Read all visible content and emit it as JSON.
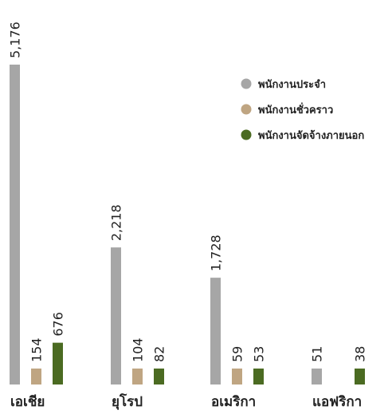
{
  "chart_data": {
    "type": "bar",
    "categories": [
      "เอเชีย",
      "ยุโรป",
      "อเมริกา",
      "แอฟริกา"
    ],
    "series": [
      {
        "name": "พนักงานประจำ",
        "color": "#a6a6a6",
        "values": [
          5176,
          2218,
          1728,
          51
        ],
        "labels": [
          "5,176",
          "2,218",
          "1,728",
          "51"
        ]
      },
      {
        "name": "พนักงานชั่วคราว",
        "color": "#bfa582",
        "values": [
          154,
          104,
          59,
          null
        ],
        "labels": [
          "154",
          "104",
          "59",
          ""
        ]
      },
      {
        "name": "พนักงานจัดจ้างภายนอก",
        "color": "#4b6b22",
        "values": [
          676,
          82,
          53,
          38
        ],
        "labels": [
          "676",
          "82",
          "53",
          "38"
        ]
      }
    ],
    "legend_position": "top-right",
    "grid": false
  }
}
